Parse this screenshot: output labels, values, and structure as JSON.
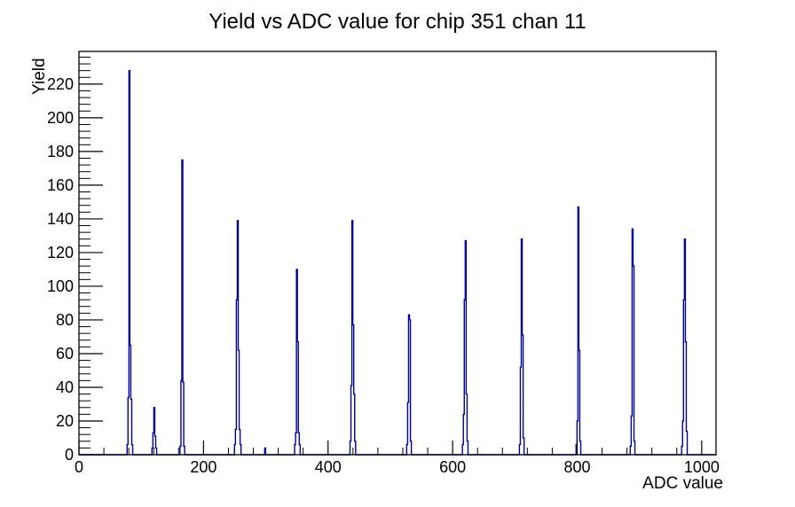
{
  "title": "Yield vs ADC value for chip 351 chan 11",
  "chart_data": {
    "type": "bar",
    "title": "Yield vs ADC value for chip 351 chan 11",
    "xlabel": "ADC value",
    "ylabel": "Yield",
    "xlim": [
      0,
      1023
    ],
    "ylim": [
      0,
      239.4
    ],
    "grid": false,
    "legend": "none",
    "line_color": "#000099",
    "axis_color": "#000000",
    "x_major_ticks": [
      0,
      200,
      400,
      600,
      800,
      1000
    ],
    "x_minor_step": 40,
    "y_major_ticks": [
      0,
      20,
      40,
      60,
      80,
      100,
      120,
      140,
      160,
      180,
      200,
      220
    ],
    "y_minor_step": 4,
    "bin_width_adc": 1.5,
    "peaks": [
      {
        "adc": 81,
        "peak": 228,
        "bins": [
          6,
          34,
          228,
          65,
          33,
          6
        ]
      },
      {
        "adc": 121,
        "peak": 28,
        "bins": [
          4,
          13,
          28,
          11,
          4
        ]
      },
      {
        "adc": 166,
        "peak": 175,
        "bins": [
          5,
          44,
          175,
          43,
          5
        ]
      },
      {
        "adc": 255,
        "peak": 139,
        "bins": [
          6,
          15,
          92,
          139,
          62,
          15,
          6
        ]
      },
      {
        "adc": 299,
        "peak": 4,
        "bins": [
          4
        ]
      },
      {
        "adc": 350,
        "peak": 110,
        "bins": [
          6,
          13,
          110,
          67,
          13,
          6
        ]
      },
      {
        "adc": 439,
        "peak": 139,
        "bins": [
          8,
          41,
          139,
          77,
          36,
          8
        ]
      },
      {
        "adc": 530,
        "peak": 83,
        "bins": [
          6,
          31,
          83,
          80,
          8
        ]
      },
      {
        "adc": 621,
        "peak": 127,
        "bins": [
          6,
          24,
          92,
          127,
          36,
          8
        ]
      },
      {
        "adc": 711,
        "peak": 128,
        "bins": [
          6,
          52,
          128,
          71,
          10
        ]
      },
      {
        "adc": 802,
        "peak": 147,
        "bins": [
          6,
          20,
          147,
          62,
          8
        ]
      },
      {
        "adc": 889,
        "peak": 134,
        "bins": [
          5,
          23,
          134,
          112,
          8
        ]
      },
      {
        "adc": 973,
        "peak": 128,
        "bins": [
          5,
          20,
          92,
          128,
          67,
          14
        ]
      }
    ]
  }
}
